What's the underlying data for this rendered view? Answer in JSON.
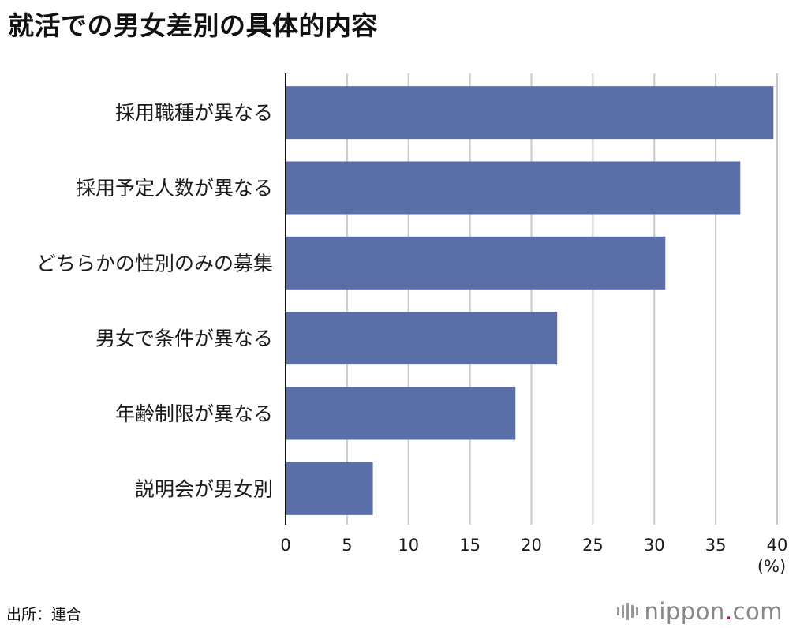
{
  "title": "就活での男女差別の具体的内容",
  "unit": "(%)",
  "source": "出所：連合",
  "logo": {
    "name": "nippon",
    "dot": ".",
    "tld": "com"
  },
  "colors": {
    "bar": "#5a6ea8",
    "grid": "#c8c8c8",
    "axis": "#111111"
  },
  "chart_data": {
    "type": "bar",
    "orientation": "horizontal",
    "title": "就活での男女差別の具体的内容",
    "xlabel": "(%)",
    "ylabel": "",
    "xlim": [
      0,
      40
    ],
    "xticks": [
      0,
      5,
      10,
      15,
      20,
      25,
      30,
      35,
      40
    ],
    "grid": true,
    "categories": [
      "採用職種が異なる",
      "採用予定人数が異なる",
      "どちらかの性別のみの募集",
      "男女で条件が異なる",
      "年齢制限が異なる",
      "説明会が男女別"
    ],
    "values": [
      39.7,
      37.0,
      30.9,
      22.1,
      18.7,
      7.1
    ]
  }
}
